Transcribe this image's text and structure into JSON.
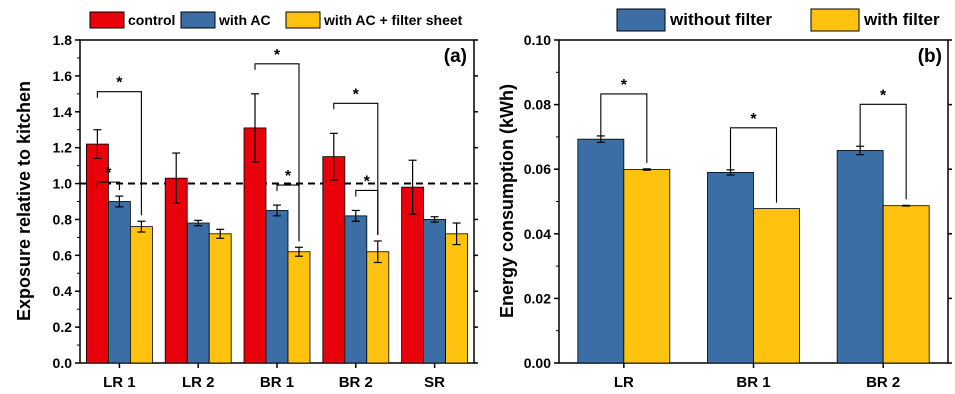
{
  "chart_data": [
    {
      "type": "bar",
      "panel_label": "(a)",
      "ylabel": "Exposure relative to kitchen",
      "xlabel": "",
      "ylim": [
        0,
        1.8
      ],
      "yticks": [
        "0.0",
        "0.2",
        "0.4",
        "0.6",
        "0.8",
        "1.0",
        "1.2",
        "1.4",
        "1.6",
        "1.8"
      ],
      "categories": [
        "LR 1",
        "LR 2",
        "BR 1",
        "BR 2",
        "SR"
      ],
      "series": [
        {
          "name": "control",
          "color": "#e8000b",
          "values": [
            1.22,
            1.03,
            1.31,
            1.15,
            0.98
          ],
          "errors": [
            0.08,
            0.14,
            0.19,
            0.13,
            0.15
          ]
        },
        {
          "name": "with AC",
          "color": "#3a6ea5",
          "values": [
            0.9,
            0.78,
            0.85,
            0.82,
            0.8
          ],
          "errors": [
            0.03,
            0.015,
            0.03,
            0.03,
            0.015
          ]
        },
        {
          "name": "with AC + filter sheet",
          "color": "#ffc20e",
          "values": [
            0.76,
            0.72,
            0.62,
            0.62,
            0.72
          ],
          "errors": [
            0.03,
            0.025,
            0.025,
            0.06,
            0.06
          ]
        }
      ],
      "reference_line": {
        "y": 1.0,
        "style": "dashed"
      },
      "significance": [
        {
          "label": "*",
          "category": 0,
          "from_series": 0,
          "to_series": 1
        },
        {
          "label": "*",
          "category": 0,
          "from_series": 0,
          "to_series": 2
        },
        {
          "label": "*",
          "category": 2,
          "from_series": 0,
          "to_series": 2
        },
        {
          "label": "*",
          "category": 2,
          "from_series": 1,
          "to_series": 2
        },
        {
          "label": "*",
          "category": 3,
          "from_series": 0,
          "to_series": 2
        },
        {
          "label": "*",
          "category": 3,
          "from_series": 1,
          "to_series": 2
        }
      ],
      "legend_position": "top",
      "grid": false
    },
    {
      "type": "bar",
      "panel_label": "(b)",
      "ylabel": "Energy consumption (kWh)",
      "xlabel": "",
      "ylim": [
        0,
        0.1
      ],
      "yticks": [
        "0.00",
        "0.02",
        "0.04",
        "0.06",
        "0.08",
        "0.10"
      ],
      "categories": [
        "LR",
        "BR 1",
        "BR 2"
      ],
      "series": [
        {
          "name": "without filter",
          "color": "#3a6ea5",
          "values": [
            0.0693,
            0.059,
            0.0658
          ],
          "errors": [
            0.001,
            0.0008,
            0.0013
          ]
        },
        {
          "name": "with filter",
          "color": "#ffc20e",
          "values": [
            0.0599,
            0.0478,
            0.0487
          ],
          "errors": [
            0.0002,
            0.0,
            0.0001
          ]
        }
      ],
      "significance": [
        {
          "label": "*",
          "category": 0,
          "from_series": 0,
          "to_series": 1
        },
        {
          "label": "*",
          "category": 1,
          "from_series": 0,
          "to_series": 1
        },
        {
          "label": "*",
          "category": 2,
          "from_series": 0,
          "to_series": 1
        }
      ],
      "legend_position": "top",
      "grid": false
    }
  ]
}
